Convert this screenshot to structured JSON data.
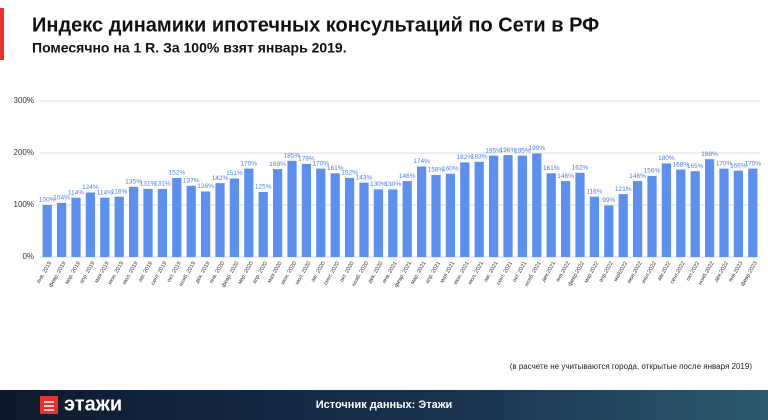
{
  "chart_data": {
    "type": "bar",
    "title": "Индекс динамики ипотечных консультаций по Сети в РФ",
    "subtitle": "Помесячно на 1 R. За 100% взят январь 2019.",
    "note": "(в расчете не учитываются города, открытые после января 2019)",
    "categories": [
      "янв. 2019",
      "февр. 2019",
      "мар. 2019",
      "апр. 2019",
      "мая 2019",
      "июн. 2019",
      "июл. 2019",
      "авг. 2019",
      "сент. 2019",
      "окт. 2019",
      "нояб. 2019",
      "дек. 2019",
      "янв. 2020",
      "февр. 2020",
      "мар. 2020",
      "апр. 2020",
      "мая 2020",
      "июн. 2020",
      "июл. 2020",
      "авг. 2020",
      "сент. 2020",
      "окт. 2020",
      "нояб. 2020",
      "дек. 2020",
      "янв. 2021",
      "февр. 2021",
      "мар. 2021",
      "апр. 2021",
      "мая 2021",
      "июн. 2021",
      "июл. 2021",
      "авг. 2021",
      "сент. 2021",
      "окт. 2021",
      "нояб. 2021",
      "дек.2021",
      "янв.2022",
      "февр.2022",
      "мар.2022",
      "апр.2022",
      "май2022",
      "июн.2022",
      "июл.2022",
      "авг.2022",
      "сент.2022",
      "окт.2022",
      "нояб.2022",
      "дек.2022",
      "янв.2023",
      "февр.2023"
    ],
    "values": [
      100,
      104,
      114,
      124,
      114,
      116,
      135,
      131,
      131,
      152,
      137,
      126,
      142,
      151,
      170,
      125,
      169,
      185,
      179,
      170,
      161,
      152,
      143,
      130,
      130,
      146,
      174,
      158,
      160,
      182,
      183,
      195,
      196,
      195,
      199,
      161,
      146,
      162,
      116,
      99,
      121,
      146,
      156,
      180,
      168,
      165,
      188,
      170,
      166,
      170
    ],
    "value_labels": [
      "100%",
      "104%",
      "114%",
      "124%",
      "114%",
      "116%",
      "135%",
      "131%",
      "131%",
      "152%",
      "137%",
      "126%",
      "142%",
      "151%",
      "170%",
      "125%",
      "169%",
      "185%",
      "179%",
      "170%",
      "161%",
      "152%",
      "143%",
      "130%",
      "130%",
      "146%",
      "174%",
      "158%",
      "160%",
      "182%",
      "183%",
      "195%",
      "196%",
      "195%",
      "199%",
      "161%",
      "146%",
      "162%",
      "116%",
      "99%",
      "121%",
      "146%",
      "156%",
      "180%",
      "168%",
      "165%",
      "188%",
      "170%",
      "166%",
      "170%"
    ],
    "color": "#5b8ff0",
    "ylim": [
      0,
      300
    ],
    "yticks": [
      {
        "value": 0,
        "label": "0%"
      },
      {
        "value": 100,
        "label": "100%"
      },
      {
        "value": 200,
        "label": "200%"
      },
      {
        "value": 300,
        "label": "300%"
      }
    ],
    "grid": true
  },
  "footer": {
    "logo": "этажи",
    "source": "Источник данных: Этажи"
  }
}
